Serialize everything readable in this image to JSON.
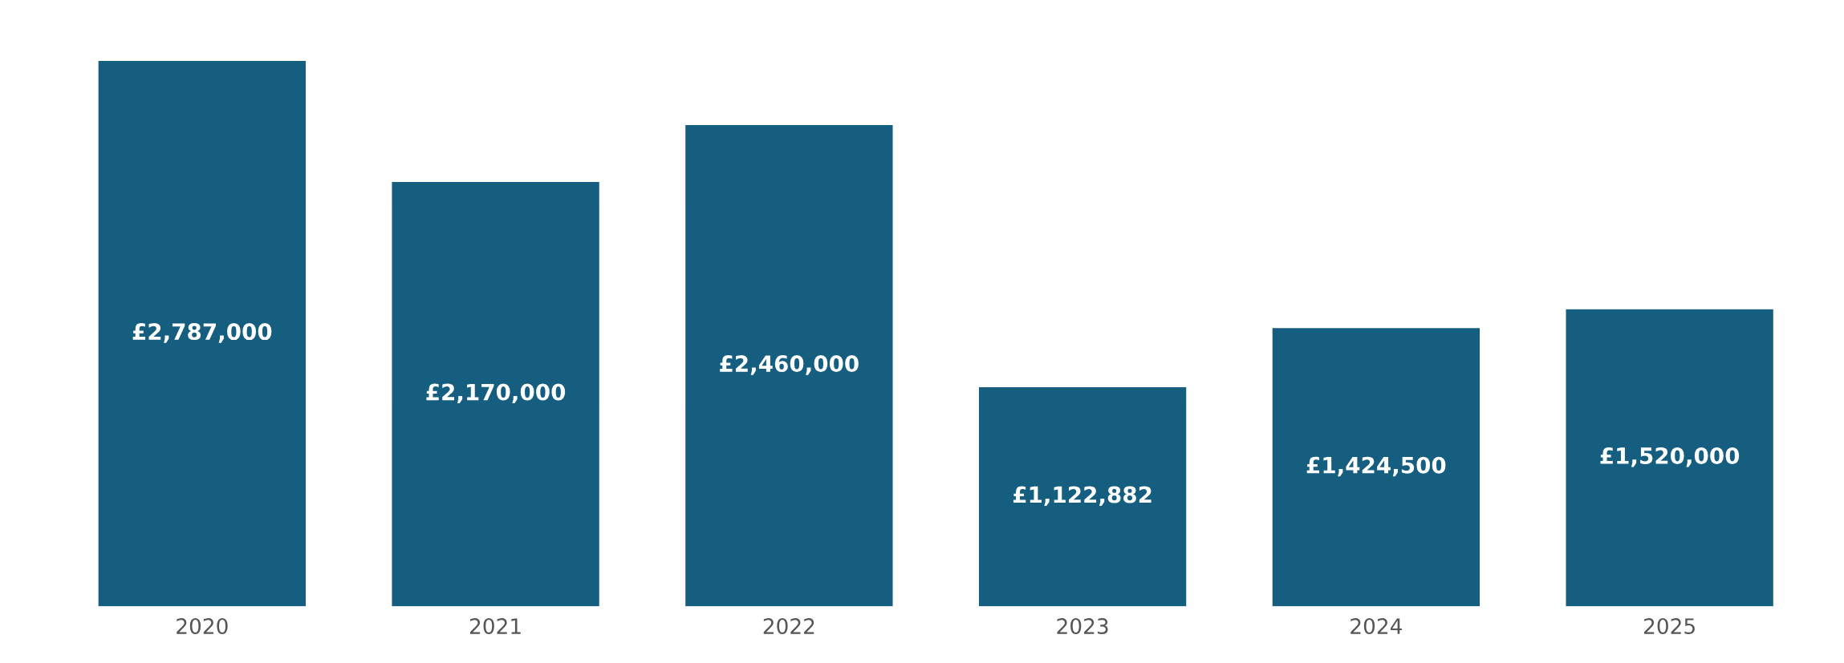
{
  "chart_data": {
    "type": "bar",
    "categories": [
      "2020",
      "2021",
      "2022",
      "2023",
      "2024",
      "2025"
    ],
    "values": [
      2787000,
      2170000,
      2460000,
      1122882,
      1424500,
      1520000
    ],
    "value_labels": [
      "£2,787,000",
      "£2,170,000",
      "£2,460,000",
      "£1,122,882",
      "£1,424,500",
      "£1,520,000"
    ],
    "color": "#165e80",
    "grid": false,
    "legend": false
  }
}
